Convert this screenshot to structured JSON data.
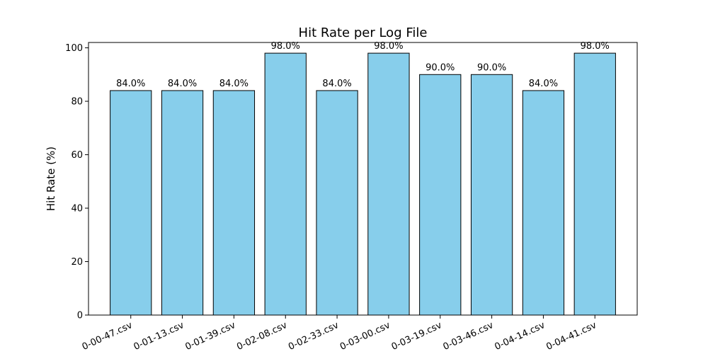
{
  "chart_data": {
    "type": "bar",
    "title": "Hit Rate per Log File",
    "xlabel": "",
    "ylabel": "Hit Rate (%)",
    "ylim": [
      0,
      102
    ],
    "yticks": [
      0,
      20,
      40,
      60,
      80,
      100
    ],
    "categories": [
      "0-00-47.csv",
      "0-01-13.csv",
      "0-01-39.csv",
      "0-02-08.csv",
      "0-02-33.csv",
      "0-03-00.csv",
      "0-03-19.csv",
      "0-03-46.csv",
      "0-04-14.csv",
      "0-04-41.csv"
    ],
    "values": [
      84.0,
      84.0,
      84.0,
      98.0,
      84.0,
      98.0,
      90.0,
      90.0,
      84.0,
      98.0
    ],
    "data_labels": [
      "84.0%",
      "84.0%",
      "84.0%",
      "98.0%",
      "84.0%",
      "98.0%",
      "90.0%",
      "90.0%",
      "84.0%",
      "98.0%"
    ],
    "bar_color": "#87CEEB",
    "edge_color": "#000000",
    "grid": false,
    "legend": "none"
  }
}
